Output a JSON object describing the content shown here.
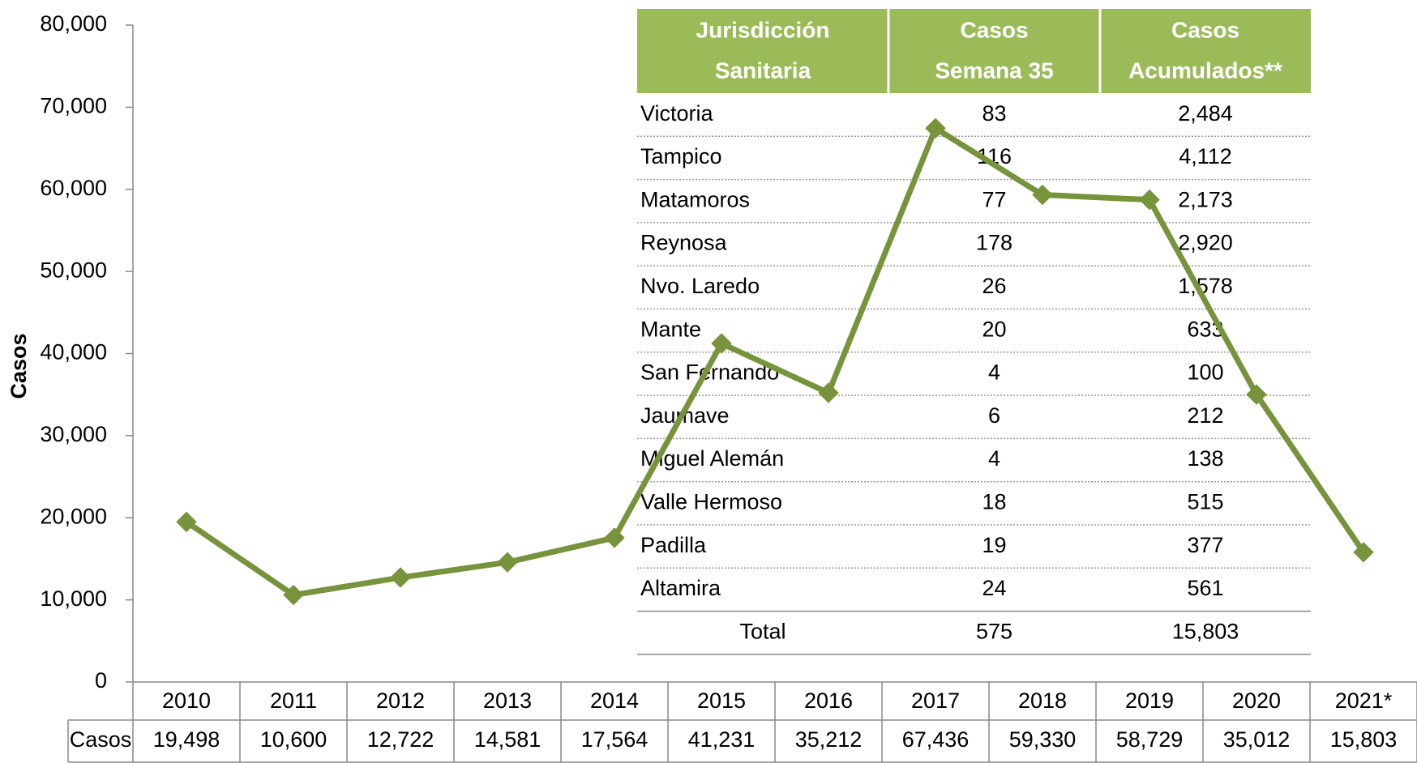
{
  "chart_data": {
    "type": "line",
    "ylabel": "Casos",
    "categories": [
      "2010",
      "2011",
      "2012",
      "2013",
      "2014",
      "2015",
      "2016",
      "2017",
      "2018",
      "2019",
      "2020",
      "2021*"
    ],
    "series": [
      {
        "name": "Casos",
        "color": "#77933c",
        "values": [
          19498,
          10600,
          12722,
          14581,
          17564,
          41231,
          35212,
          67436,
          59330,
          58729,
          35012,
          15803
        ],
        "value_labels": [
          "19,498",
          "10,600",
          "12,722",
          "14,581",
          "17,564",
          "41,231",
          "35,212",
          "67,436",
          "59,330",
          "58,729",
          "35,012",
          "15,803"
        ]
      }
    ],
    "ylim": [
      0,
      80000
    ],
    "yticks": [
      0,
      {
        "value": 10000,
        "label": "10,000"
      },
      {
        "value": 20000,
        "label": "20,000"
      },
      {
        "value": 30000,
        "label": "30,000"
      },
      {
        "value": 40000,
        "label": "40,000"
      },
      {
        "value": 50000,
        "label": "50,000"
      },
      {
        "value": 60000,
        "label": "60,000"
      },
      {
        "value": 70000,
        "label": "70,000"
      },
      {
        "value": 80000,
        "label": "80,000"
      }
    ]
  },
  "table": {
    "header_color": "#9bbb59",
    "headers": [
      [
        "Jurisdicción",
        "Sanitaria"
      ],
      [
        "Casos",
        "Semana 35"
      ],
      [
        "Casos",
        "Acumulados**"
      ]
    ],
    "rows": [
      [
        "Victoria",
        "83",
        "2,484"
      ],
      [
        "Tampico",
        "116",
        "4,112"
      ],
      [
        "Matamoros",
        "77",
        "2,173"
      ],
      [
        "Reynosa",
        "178",
        "2,920"
      ],
      [
        "Nvo. Laredo",
        "26",
        "1,578"
      ],
      [
        "Mante",
        "20",
        "633"
      ],
      [
        "San Fernando",
        "4",
        "100"
      ],
      [
        "Jaumave",
        "6",
        "212"
      ],
      [
        "Miguel Alemán",
        "4",
        "138"
      ],
      [
        "Valle Hermoso",
        "18",
        "515"
      ],
      [
        "Padilla",
        "19",
        "377"
      ],
      [
        "Altamira",
        "24",
        "561"
      ]
    ],
    "total": [
      "Total",
      "575",
      "15,803"
    ]
  }
}
